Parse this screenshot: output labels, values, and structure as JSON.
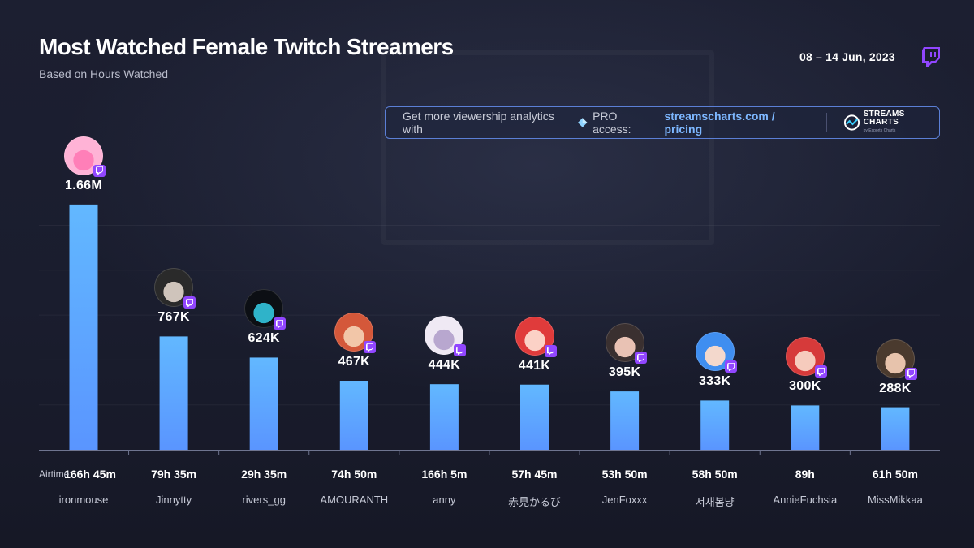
{
  "header": {
    "title": "Most Watched Female Twitch Streamers",
    "subtitle": "Based on Hours Watched",
    "date_range": "08 – 14 Jun, 2023",
    "platform_icon": "twitch-icon"
  },
  "promo": {
    "text": "Get more viewership analytics with",
    "pro_label": "PRO access:",
    "link": "streamscharts.com / pricing",
    "brand": "STREAMS CHARTS",
    "brand_sub": "by Esports Charts"
  },
  "colors": {
    "bar_top": "#60b4ff",
    "bar_bottom": "#5a97ff",
    "accent": "#9146ff",
    "border": "#5b7fd6"
  },
  "chart_data": {
    "type": "bar",
    "title": "Most Watched Female Twitch Streamers",
    "subtitle": "Based on Hours Watched",
    "categories": [
      "ironmouse",
      "Jinnytty",
      "rivers_gg",
      "AMOURANTH",
      "anny",
      "赤見かるび",
      "JenFoxxx",
      "서새봄냥",
      "AnnieFuchsia",
      "MissMikkaa"
    ],
    "values": [
      1660000,
      767000,
      624000,
      467000,
      444000,
      441000,
      395000,
      333000,
      300000,
      288000
    ],
    "value_labels": [
      "1.66M",
      "767K",
      "624K",
      "467K",
      "444K",
      "441K",
      "395K",
      "333K",
      "300K",
      "288K"
    ],
    "airtime_label": "Airtime:",
    "airtime": [
      "166h 45m",
      "79h 35m",
      "29h 35m",
      "74h 50m",
      "166h 5m",
      "57h 45m",
      "53h 50m",
      "58h 50m",
      "89h",
      "61h 50m"
    ],
    "ylim": [
      0,
      2000000
    ],
    "grid": true,
    "legend": "none"
  }
}
